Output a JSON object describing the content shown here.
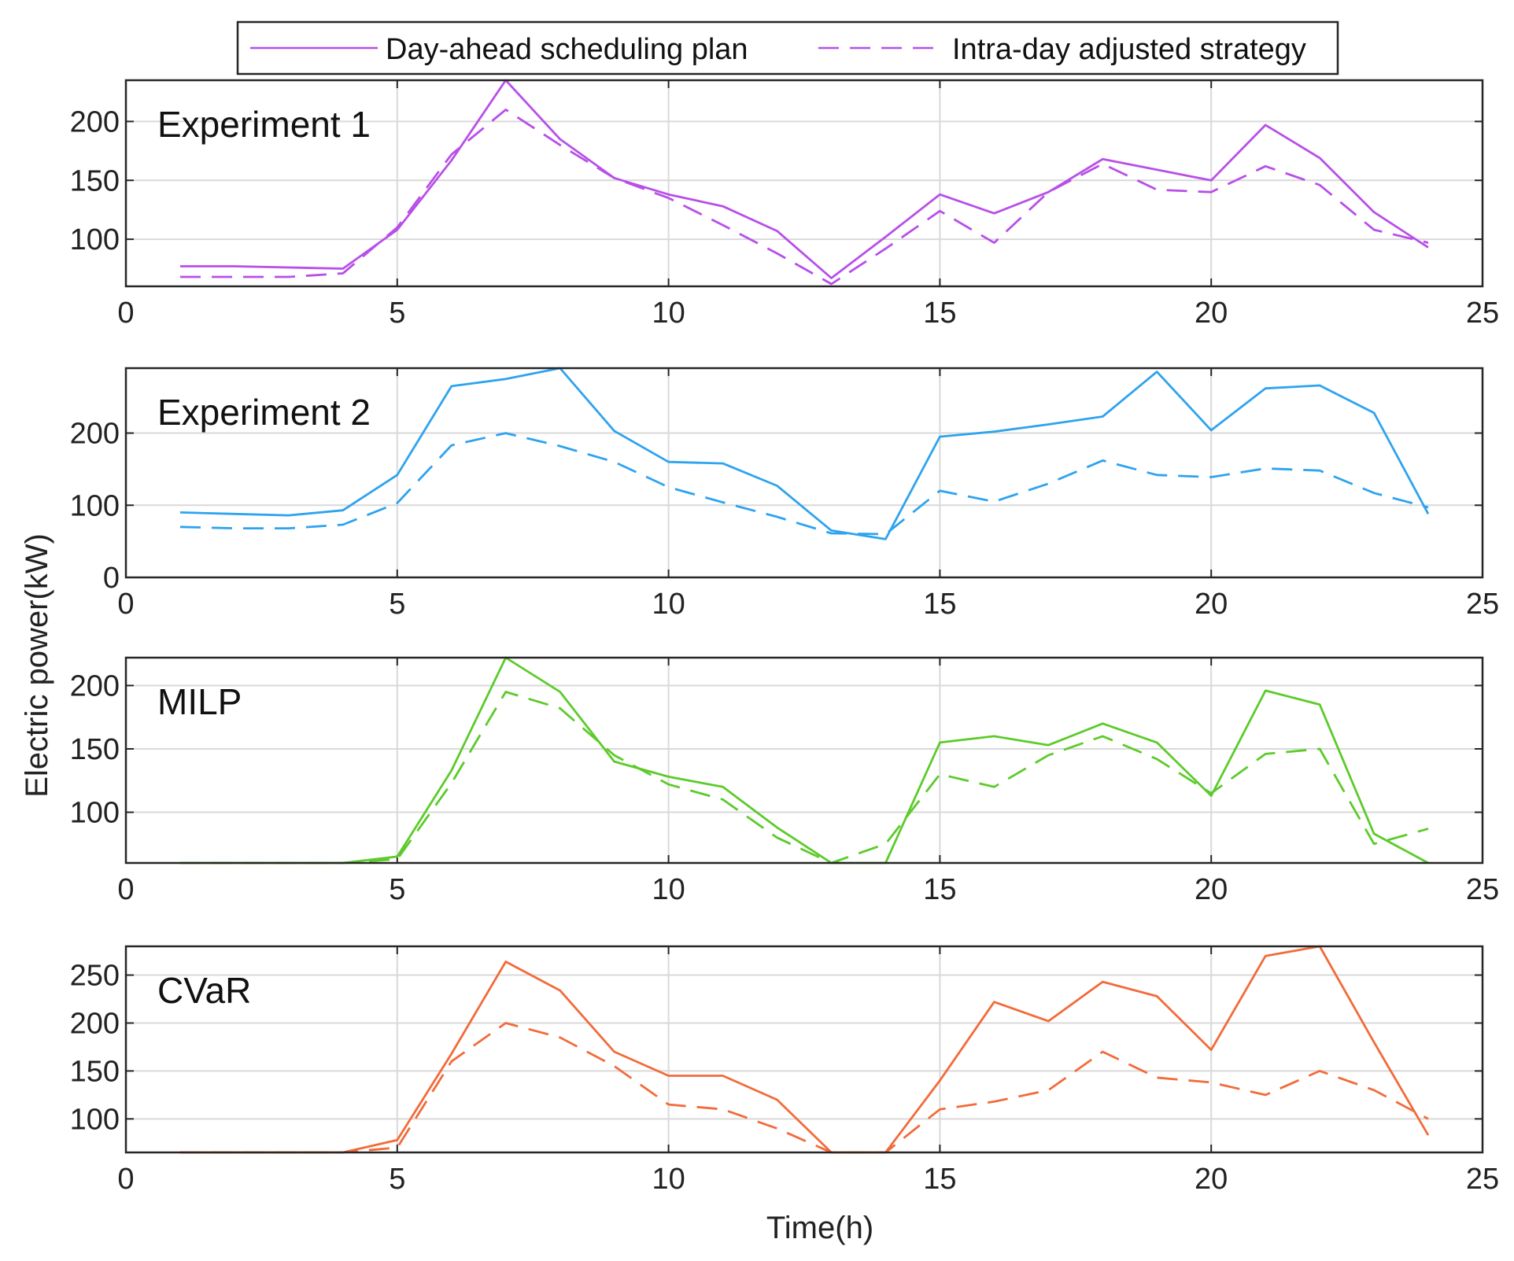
{
  "figure": {
    "xlabel": "Time(h)",
    "ylabel": "Electric power(kW)"
  },
  "legend": {
    "position": "top-center",
    "entries": [
      {
        "label": "Day-ahead scheduling plan",
        "style": "solid"
      },
      {
        "label": "Intra-day adjusted strategy",
        "style": "dashed"
      }
    ]
  },
  "chart_data": [
    {
      "type": "line",
      "title": "Experiment 1",
      "color": "#B84FE8",
      "xlim": [
        0,
        25
      ],
      "ylim": [
        60,
        235
      ],
      "xticks": [
        0,
        5,
        10,
        15,
        20,
        25
      ],
      "yticks": [
        100,
        150,
        200
      ],
      "grid": true,
      "x": [
        1,
        2,
        3,
        4,
        5,
        6,
        7,
        8,
        9,
        10,
        11,
        12,
        13,
        14,
        15,
        16,
        17,
        18,
        19,
        20,
        21,
        22,
        23,
        24
      ],
      "series": [
        {
          "name": "Day-ahead scheduling plan",
          "style": "solid",
          "values": [
            77,
            77,
            76,
            75,
            108,
            167,
            235,
            185,
            152,
            138,
            128,
            107,
            67,
            102,
            138,
            122,
            140,
            168,
            159,
            150,
            197,
            169,
            123,
            93
          ]
        },
        {
          "name": "Intra-day adjusted strategy",
          "style": "dashed",
          "values": [
            68,
            68,
            68,
            71,
            110,
            172,
            210,
            180,
            152,
            135,
            112,
            88,
            62,
            92,
            124,
            97,
            140,
            164,
            142,
            140,
            162,
            146,
            108,
            97
          ]
        }
      ]
    },
    {
      "type": "line",
      "title": "Experiment 2",
      "color": "#2EA3EE",
      "xlim": [
        0,
        25
      ],
      "ylim": [
        0,
        290
      ],
      "xticks": [
        0,
        5,
        10,
        15,
        20,
        25
      ],
      "yticks": [
        0,
        100,
        200
      ],
      "grid": true,
      "x": [
        1,
        2,
        3,
        4,
        5,
        6,
        7,
        8,
        9,
        10,
        11,
        12,
        13,
        14,
        15,
        16,
        17,
        18,
        19,
        20,
        21,
        22,
        23,
        24
      ],
      "series": [
        {
          "name": "Day-ahead scheduling plan",
          "style": "solid",
          "values": [
            90,
            88,
            86,
            93,
            142,
            265,
            275,
            290,
            203,
            160,
            158,
            127,
            65,
            53,
            195,
            202,
            212,
            223,
            285,
            204,
            262,
            266,
            228,
            88
          ]
        },
        {
          "name": "Intra-day adjusted strategy",
          "style": "dashed",
          "values": [
            70,
            68,
            68,
            73,
            103,
            183,
            200,
            182,
            160,
            125,
            104,
            84,
            61,
            60,
            120,
            105,
            130,
            162,
            142,
            139,
            151,
            148,
            117,
            97
          ]
        }
      ]
    },
    {
      "type": "line",
      "title": "MILP",
      "color": "#5CCB2A",
      "xlim": [
        0,
        25
      ],
      "ylim": [
        60,
        222
      ],
      "xticks": [
        0,
        5,
        10,
        15,
        20,
        25
      ],
      "yticks": [
        100,
        150,
        200
      ],
      "grid": true,
      "x": [
        1,
        2,
        3,
        4,
        5,
        6,
        7,
        8,
        9,
        10,
        11,
        12,
        13,
        14,
        15,
        16,
        17,
        18,
        19,
        20,
        21,
        22,
        23,
        24
      ],
      "series": [
        {
          "name": "Day-ahead scheduling plan",
          "style": "solid",
          "values": [
            60,
            60,
            60,
            60,
            65,
            133,
            222,
            195,
            140,
            128,
            120,
            88,
            60,
            60,
            155,
            160,
            153,
            170,
            155,
            113,
            196,
            185,
            83,
            60
          ]
        },
        {
          "name": "Intra-day adjusted strategy",
          "style": "dashed",
          "values": [
            60,
            60,
            60,
            60,
            63,
            123,
            195,
            182,
            145,
            122,
            110,
            80,
            60,
            75,
            130,
            120,
            145,
            160,
            142,
            115,
            146,
            150,
            75,
            87
          ]
        }
      ]
    },
    {
      "type": "line",
      "title": "CVaR",
      "color": "#F26B3A",
      "xlim": [
        0,
        25
      ],
      "ylim": [
        65,
        280
      ],
      "xticks": [
        0,
        5,
        10,
        15,
        20,
        25
      ],
      "yticks": [
        100,
        150,
        200,
        250
      ],
      "grid": true,
      "x": [
        1,
        2,
        3,
        4,
        5,
        6,
        7,
        8,
        9,
        10,
        11,
        12,
        13,
        14,
        15,
        16,
        17,
        18,
        19,
        20,
        21,
        22,
        23,
        24
      ],
      "series": [
        {
          "name": "Day-ahead scheduling plan",
          "style": "solid",
          "values": [
            65,
            65,
            65,
            65,
            78,
            168,
            264,
            234,
            170,
            145,
            145,
            120,
            65,
            65,
            140,
            222,
            202,
            243,
            228,
            172,
            270,
            280,
            180,
            83
          ]
        },
        {
          "name": "Intra-day adjusted strategy",
          "style": "dashed",
          "values": [
            65,
            65,
            65,
            65,
            70,
            160,
            200,
            185,
            155,
            115,
            110,
            90,
            65,
            65,
            110,
            118,
            130,
            170,
            143,
            138,
            125,
            150,
            130,
            100
          ]
        }
      ]
    }
  ]
}
